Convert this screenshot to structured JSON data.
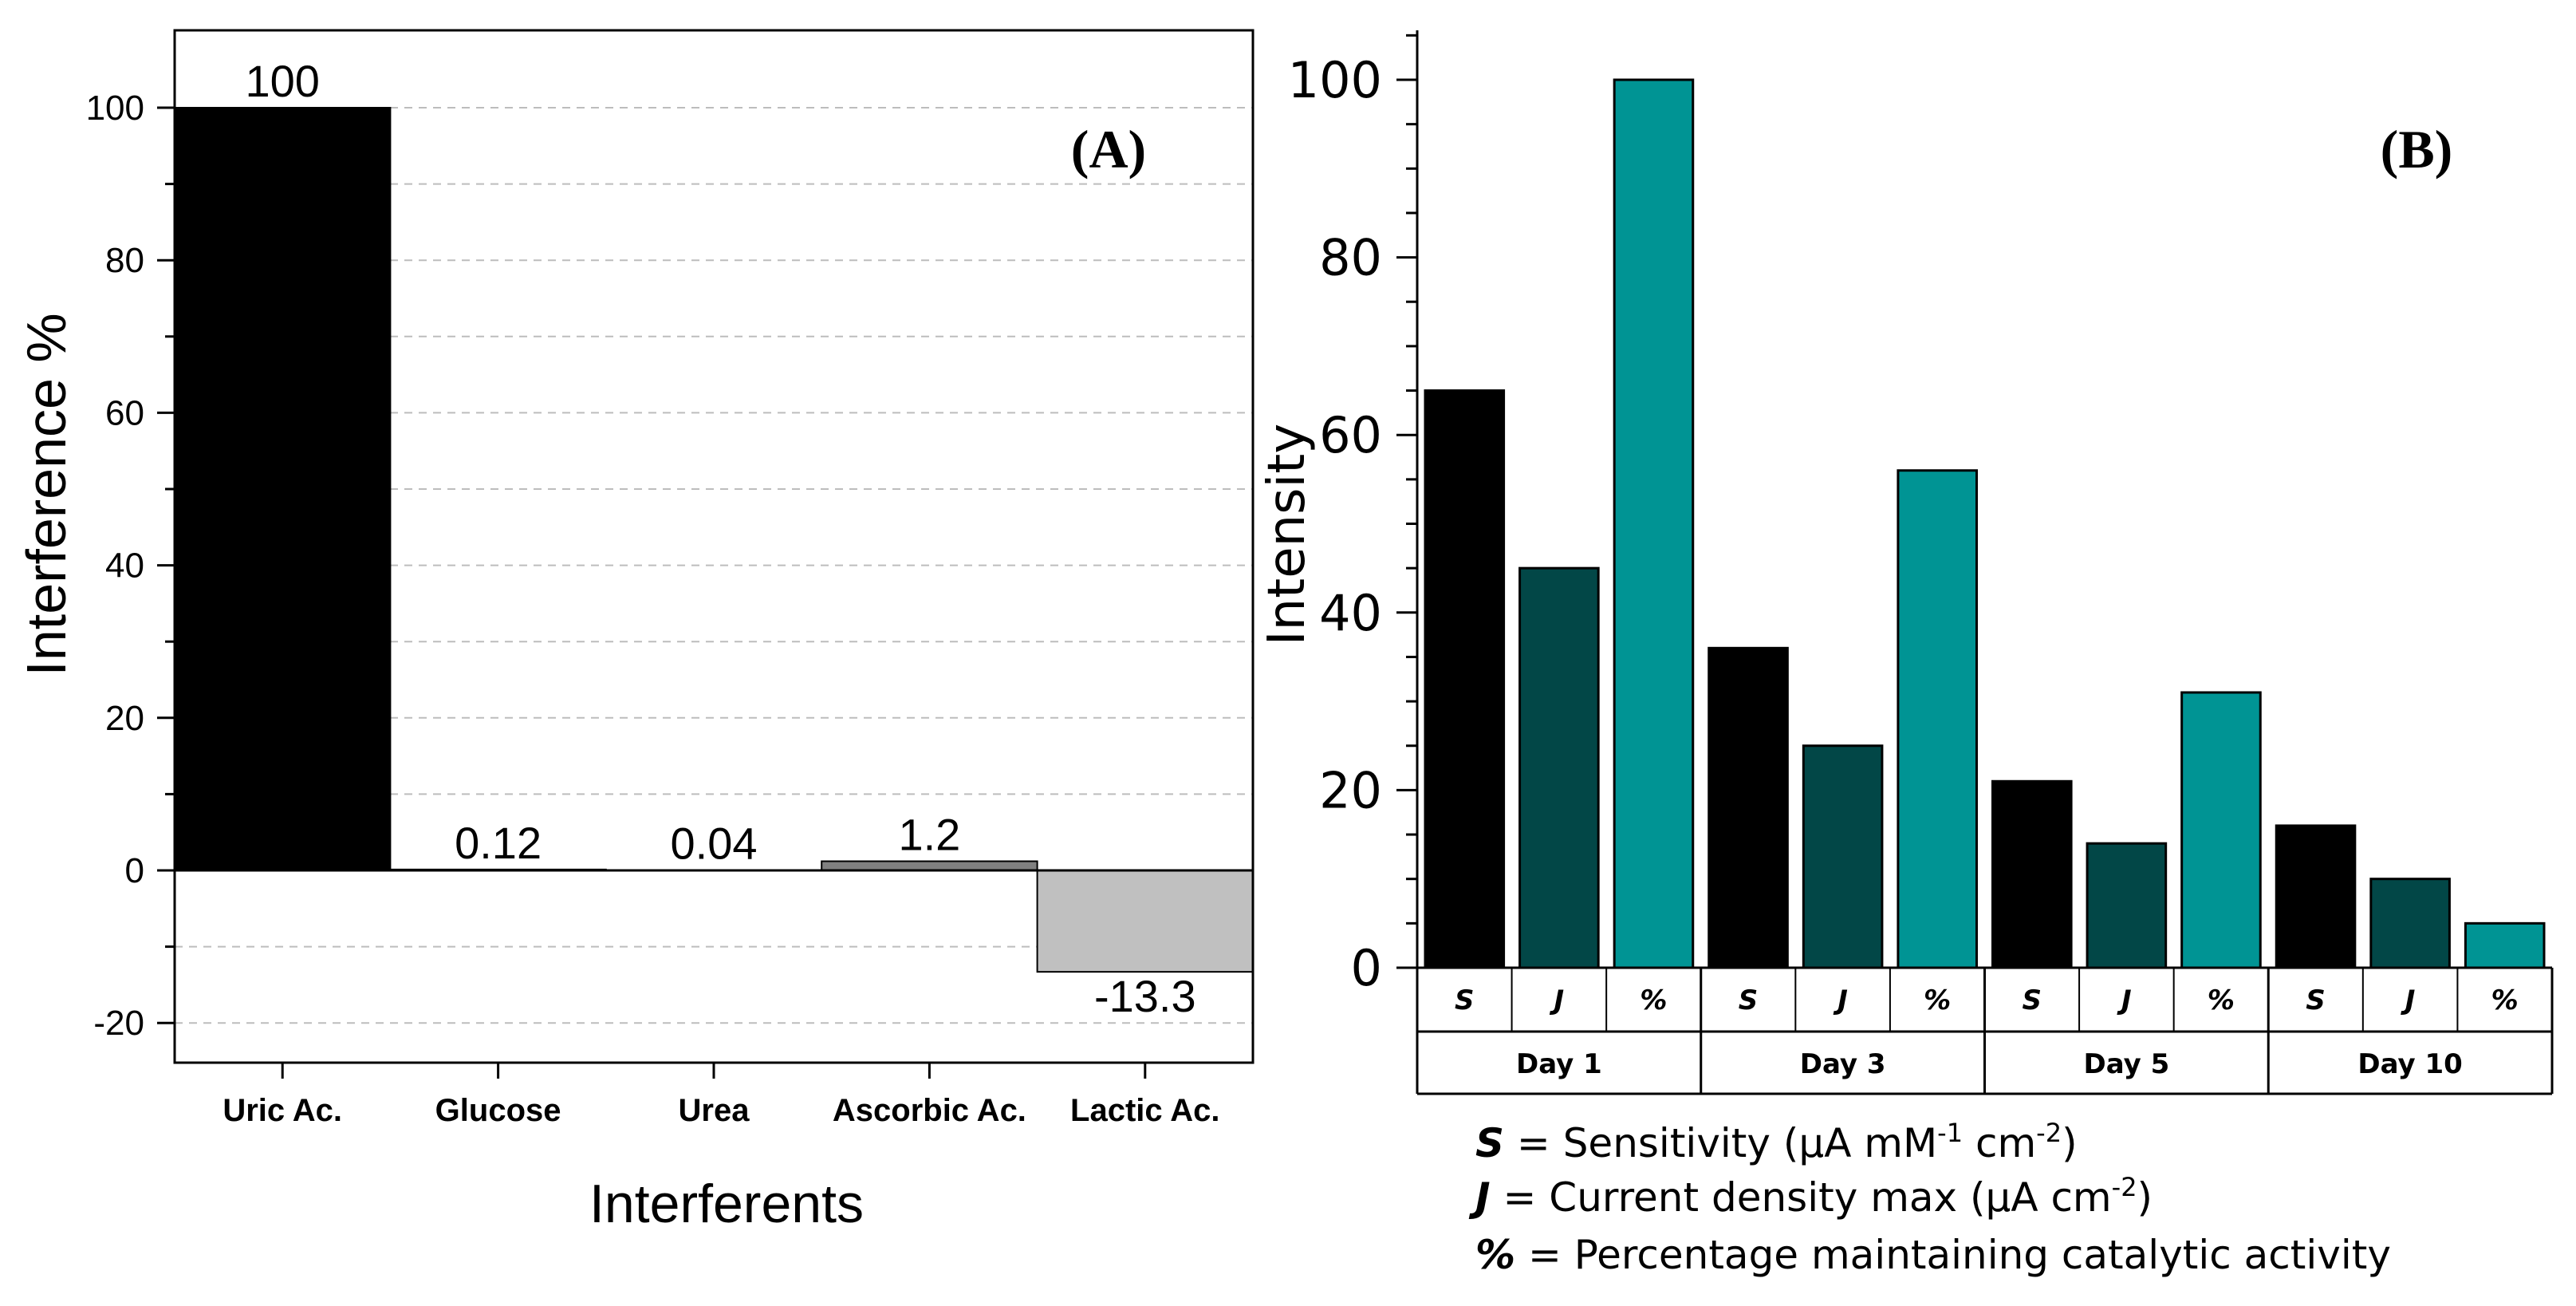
{
  "chart_data": [
    {
      "type": "bar",
      "panel_label": "(A)",
      "title": "",
      "xlabel": "Interferents",
      "ylabel": "Interference %",
      "ylim": [
        -25,
        110
      ],
      "yticks": [
        "-20",
        "0",
        "20",
        "40",
        "60",
        "80",
        "100"
      ],
      "grid": "dashed",
      "categories": [
        "Uric Ac.",
        "Glucose",
        "Urea",
        "Ascorbic Ac.",
        "Lactic Ac."
      ],
      "values": [
        100,
        0.12,
        0.04,
        1.2,
        -13.3
      ],
      "data_labels": [
        "100",
        "0.12",
        "0.04",
        "1.2",
        "-13.3"
      ],
      "colors": [
        "#000000",
        "#000000",
        "#000000",
        "#808080",
        "#c0c0c0"
      ]
    },
    {
      "type": "bar",
      "panel_label": "(B)",
      "title": "",
      "xlabel": "",
      "ylabel": "Intensity",
      "ylim": [
        0,
        105
      ],
      "yticks": [
        "0",
        "20",
        "40",
        "60",
        "80",
        "100"
      ],
      "groups": [
        "Day 1",
        "Day 3",
        "Day 5",
        "Day 10"
      ],
      "sub_categories": [
        "S",
        "J",
        "%"
      ],
      "series": [
        {
          "name": "S",
          "color": "#000000",
          "values": [
            65,
            36,
            21,
            16
          ]
        },
        {
          "name": "J",
          "color": "#024747",
          "values": [
            45,
            25,
            14,
            10
          ]
        },
        {
          "name": "%",
          "color": "#009494",
          "values": [
            100,
            56,
            31,
            5
          ]
        }
      ],
      "legend": [
        {
          "symbol": "S",
          "text": " = Sensitivity (µA mM",
          "sup1": "-1",
          "mid": " cm",
          "sup2": "-2",
          "end": ")"
        },
        {
          "symbol": "J",
          "text": " = Current density max (µA cm",
          "sup1": "-2",
          "mid": "",
          "sup2": "",
          "end": ")"
        },
        {
          "symbol": "%",
          "text": " = Percentage maintaining catalytic activity",
          "sup1": "",
          "mid": "",
          "sup2": "",
          "end": ""
        }
      ]
    }
  ]
}
